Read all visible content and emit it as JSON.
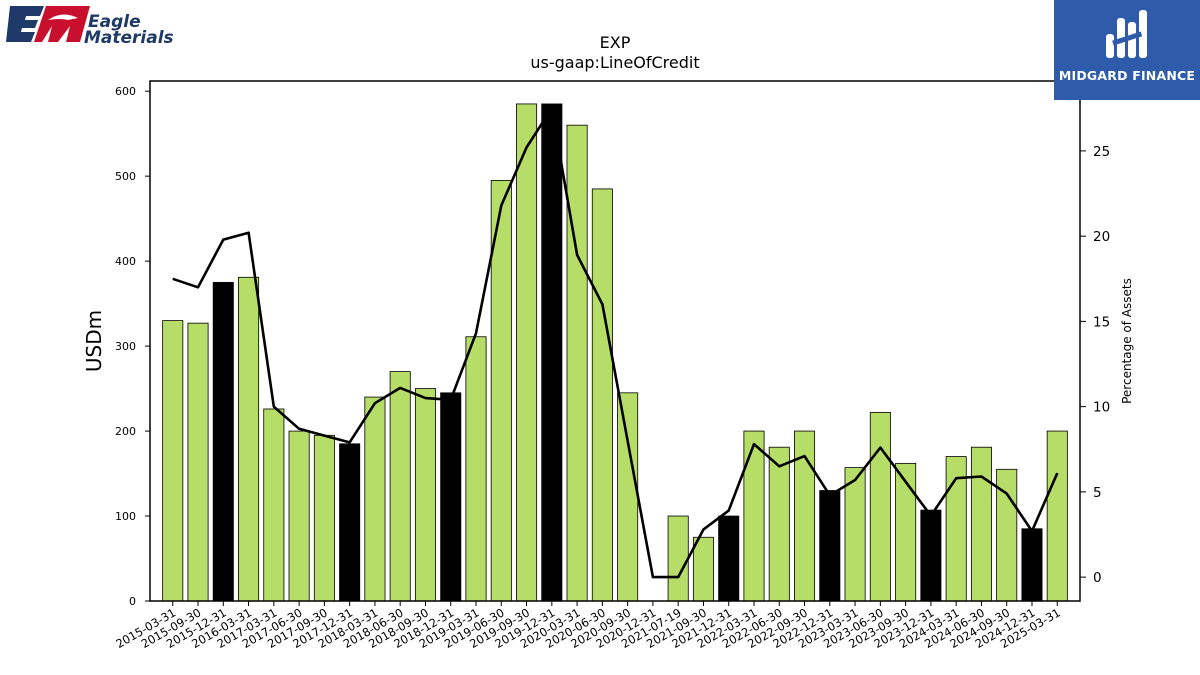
{
  "company_logo": {
    "line1": "Eagle",
    "line2": "Materials",
    "mark": "EM"
  },
  "watermark": {
    "name": "MIDGARD FINANCE"
  },
  "colors": {
    "bar_default": "#b5dd68",
    "bar_highlight": "#000000",
    "line": "#000000",
    "logo_navy": "#1f3a68",
    "logo_red": "#c8102e",
    "watermark_bg": "#2f5caa"
  },
  "chart_data": {
    "type": "bar",
    "title": "EXP",
    "subtitle": "us-gaap:LineOfCredit",
    "ylabel": "USDm",
    "y2label": "Percentage of Assets",
    "ylim": [
      0,
      612
    ],
    "y2lim": [
      -1.4,
      29.1
    ],
    "yticks": [
      0,
      100,
      200,
      300,
      400,
      500,
      600
    ],
    "y2ticks": [
      0,
      5,
      10,
      15,
      20,
      25
    ],
    "categories": [
      "2015-03-31",
      "2015-09-30",
      "2015-12-31",
      "2016-03-31",
      "2017-03-31",
      "2017-06-30",
      "2017-09-30",
      "2017-12-31",
      "2018-03-31",
      "2018-06-30",
      "2018-09-30",
      "2018-12-31",
      "2019-03-31",
      "2019-06-30",
      "2019-09-30",
      "2019-12-31",
      "2020-03-31",
      "2020-06-30",
      "2020-09-30",
      "2020-12-31",
      "2021-07-19",
      "2021-09-30",
      "2021-12-31",
      "2022-03-31",
      "2022-06-30",
      "2022-09-30",
      "2022-12-31",
      "2023-03-31",
      "2023-06-30",
      "2023-09-30",
      "2023-12-31",
      "2024-03-31",
      "2024-06-30",
      "2024-09-30",
      "2024-12-31",
      "2025-03-31"
    ],
    "series": [
      {
        "kind": "bar",
        "values": [
          330,
          327,
          375,
          381,
          226,
          200,
          195,
          185,
          240,
          270,
          250,
          245,
          311,
          495,
          585,
          585,
          560,
          485,
          245,
          0,
          100,
          75,
          100,
          200,
          181,
          200,
          130,
          157,
          222,
          162,
          107,
          170,
          181,
          155,
          85,
          200
        ]
      },
      {
        "kind": "line",
        "values": [
          17.5,
          17.0,
          19.8,
          20.2,
          10.0,
          8.7,
          8.3,
          7.9,
          10.2,
          11.1,
          10.5,
          10.4,
          14.3,
          21.8,
          25.2,
          27.5,
          18.9,
          16.0,
          8.0,
          0.0,
          0.0,
          2.8,
          3.9,
          7.8,
          6.5,
          7.1,
          4.8,
          5.7,
          7.6,
          5.6,
          3.6,
          5.8,
          5.9,
          4.9,
          2.7,
          6.1
        ]
      }
    ],
    "highlight_indices": [
      2,
      7,
      11,
      15,
      22,
      26,
      30,
      34
    ],
    "grid": false
  }
}
